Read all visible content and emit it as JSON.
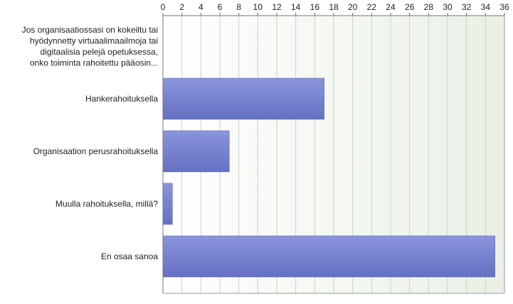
{
  "chart_data": {
    "type": "bar",
    "orientation": "horizontal",
    "title": "",
    "xlabel": "",
    "ylabel": "",
    "xlim": [
      0,
      36
    ],
    "x_ticks": [
      0,
      2,
      4,
      6,
      8,
      10,
      12,
      14,
      16,
      18,
      20,
      22,
      24,
      26,
      28,
      30,
      32,
      34,
      36
    ],
    "tick_position": "top",
    "grid": true,
    "legend": "none",
    "bar_color_top": "#8b95dd",
    "bar_color_bottom": "#6470c2",
    "plot_background": "#eaf0e6",
    "categories": [
      {
        "label_lines": [
          "Jos organisaatiossasi on kokeiltu tai",
          "hyödynnetty virtuaalimaailmoja tai",
          "digitaalisia pelejä opetuksessa,",
          "onko toiminta rahoitettu pääosin..."
        ],
        "value": 0
      },
      {
        "label_lines": [
          "Hankerahoituksella"
        ],
        "value": 17
      },
      {
        "label_lines": [
          "Organisaation perusrahoituksella"
        ],
        "value": 7
      },
      {
        "label_lines": [
          "Muulla rahoituksella, millä?"
        ],
        "value": 1
      },
      {
        "label_lines": [
          "En osaa sanoa"
        ],
        "value": 35
      }
    ]
  }
}
